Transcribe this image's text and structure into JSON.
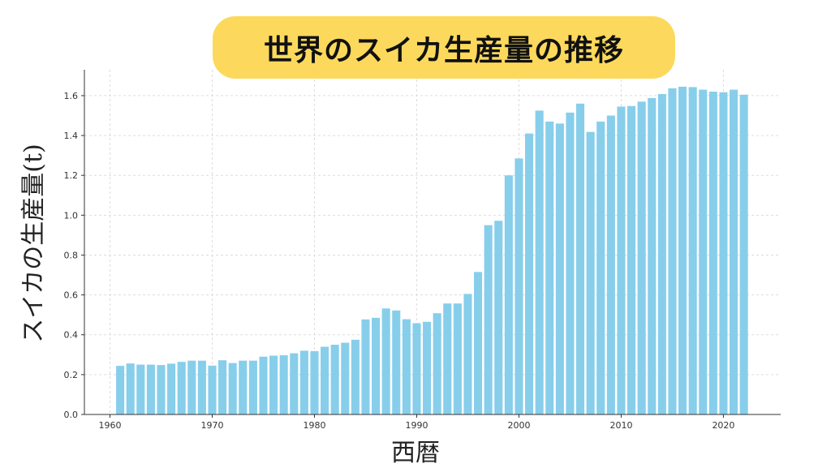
{
  "chart_data": {
    "type": "bar",
    "title": "世界のスイカ生産量の推移",
    "xlabel": "西暦",
    "ylabel": "スイカの生産量(t)",
    "xlim": [
      1957.5,
      2025.6
    ],
    "ylim": [
      0,
      1.73
    ],
    "xticks": [
      1960,
      1970,
      1980,
      1990,
      2000,
      2010,
      2020
    ],
    "yticks": [
      "0.0",
      "0.2",
      "0.4",
      "0.6",
      "0.8",
      "1.0",
      "1.2",
      "1.4",
      "1.6"
    ],
    "grid": true,
    "bar_color": "#87ceeb",
    "title_background": "#fcd95c",
    "x": [
      1961,
      1962,
      1963,
      1964,
      1965,
      1966,
      1967,
      1968,
      1969,
      1970,
      1971,
      1972,
      1973,
      1974,
      1975,
      1976,
      1977,
      1978,
      1979,
      1980,
      1981,
      1982,
      1983,
      1984,
      1985,
      1986,
      1987,
      1988,
      1989,
      1990,
      1991,
      1992,
      1993,
      1994,
      1995,
      1996,
      1997,
      1998,
      1999,
      2000,
      2001,
      2002,
      2003,
      2004,
      2005,
      2006,
      2007,
      2008,
      2009,
      2010,
      2011,
      2012,
      2013,
      2014,
      2015,
      2016,
      2017,
      2018,
      2019,
      2020,
      2021,
      2022
    ],
    "values": [
      0.244,
      0.256,
      0.25,
      0.25,
      0.248,
      0.255,
      0.264,
      0.27,
      0.27,
      0.245,
      0.272,
      0.258,
      0.27,
      0.27,
      0.29,
      0.295,
      0.297,
      0.307,
      0.32,
      0.318,
      0.34,
      0.35,
      0.36,
      0.375,
      0.477,
      0.485,
      0.532,
      0.522,
      0.478,
      0.458,
      0.465,
      0.508,
      0.557,
      0.557,
      0.605,
      0.715,
      0.95,
      0.972,
      1.2,
      1.285,
      1.41,
      1.525,
      1.47,
      1.46,
      1.515,
      1.56,
      1.418,
      1.47,
      1.5,
      1.545,
      1.548,
      1.57,
      1.588,
      1.608,
      1.637,
      1.645,
      1.643,
      1.63,
      1.62,
      1.617,
      1.63,
      1.605
    ]
  }
}
